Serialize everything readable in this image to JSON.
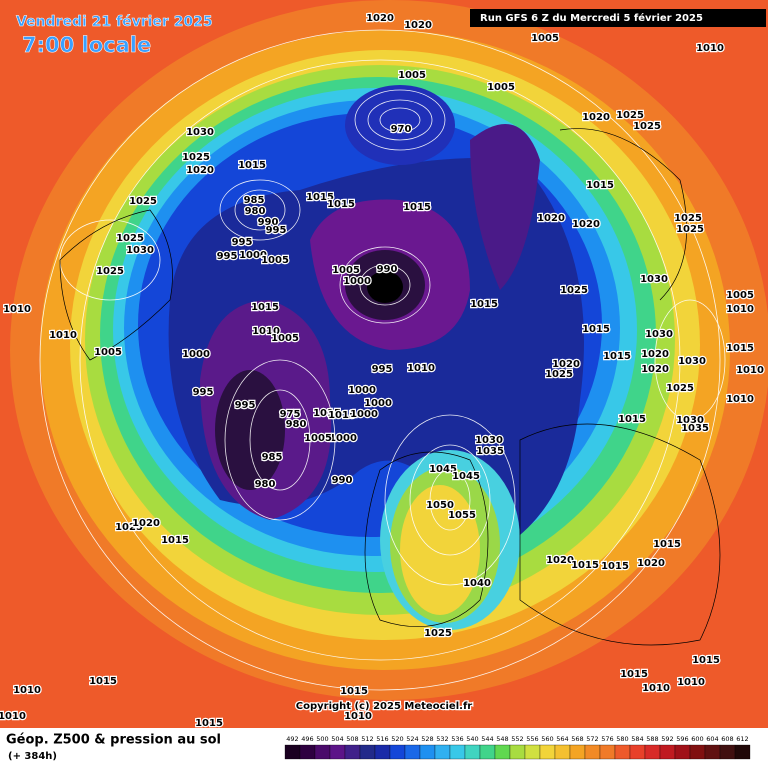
{
  "header": {
    "date": "Vendredi 21 février 2025",
    "time": "7:00 locale",
    "run": "Run GFS 6 Z du Mercredi 5 février 2025"
  },
  "footer": {
    "title": "Géop. Z500 & pression au sol",
    "lead": "(+ 384h)",
    "copyright": "Copyright (c) 2025 Meteociel.fr"
  },
  "scale": [
    492,
    496,
    500,
    504,
    508,
    512,
    516,
    520,
    524,
    528,
    532,
    536,
    540,
    544,
    548,
    552,
    556,
    560,
    564,
    568,
    572,
    576,
    580,
    584,
    588,
    592,
    596,
    600,
    604,
    608,
    612
  ],
  "isobar_labels": [
    "1020",
    "1020",
    "1005",
    "1010",
    "1005",
    "1005",
    "970",
    "1020",
    "1025",
    "1025",
    "1030",
    "1025",
    "1015",
    "1020",
    "1015",
    "1025",
    "985",
    "980",
    "990",
    "995",
    "1015",
    "1015",
    "1015",
    "1020",
    "1020",
    "1025",
    "1025",
    "1025",
    "1030",
    "995",
    "995",
    "1000",
    "1005",
    "1025",
    "1005",
    "990",
    "1000",
    "1030",
    "1010",
    "1025",
    "1005",
    "1010",
    "1015",
    "1015",
    "1010",
    "1005",
    "1015",
    "1030",
    "1010",
    "1005",
    "1000",
    "1015",
    "1020",
    "1030",
    "1015",
    "1020",
    "1025",
    "995",
    "1010",
    "1020",
    "1010",
    "1000",
    "995",
    "1000",
    "1025",
    "1010",
    "995",
    "975",
    "1015",
    "1015",
    "1000",
    "1015",
    "1030",
    "1035",
    "980",
    "1000",
    "1005",
    "1030",
    "1035",
    "985",
    "990",
    "1045",
    "1045",
    "980",
    "1050",
    "1055",
    "1025",
    "1020",
    "1015",
    "1015",
    "1020",
    "1015",
    "1015",
    "1020",
    "1040",
    "1025",
    "1015",
    "1010",
    "1015",
    "1010",
    "1010",
    "1015",
    "1010",
    "1015",
    "1015",
    "1010"
  ]
}
